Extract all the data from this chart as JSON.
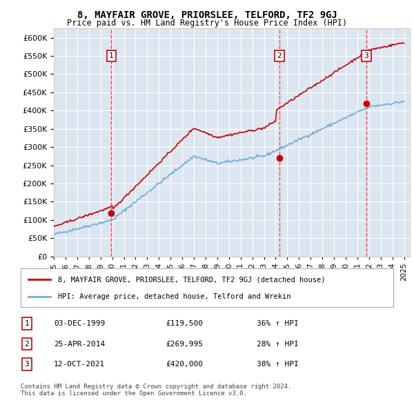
{
  "title": "8, MAYFAIR GROVE, PRIORSLEE, TELFORD, TF2 9GJ",
  "subtitle": "Price paid vs. HM Land Registry's House Price Index (HPI)",
  "ylabel": "",
  "xlim_start": 1995,
  "xlim_end": 2025.5,
  "ylim": [
    0,
    625000
  ],
  "yticks": [
    0,
    50000,
    100000,
    150000,
    200000,
    250000,
    300000,
    350000,
    400000,
    450000,
    500000,
    550000,
    600000
  ],
  "background_color": "#dce6f1",
  "plot_bg": "#dce6f1",
  "grid_color": "#ffffff",
  "sale_points": [
    {
      "year": 1999.92,
      "price": 119500,
      "label": "1"
    },
    {
      "year": 2014.32,
      "price": 269995,
      "label": "2"
    },
    {
      "year": 2021.78,
      "price": 420000,
      "label": "3"
    }
  ],
  "vline_years": [
    1999.92,
    2014.32,
    2021.78
  ],
  "legend_entries": [
    "8, MAYFAIR GROVE, PRIORSLEE, TELFORD, TF2 9GJ (detached house)",
    "HPI: Average price, detached house, Telford and Wrekin"
  ],
  "table_data": [
    [
      "1",
      "03-DEC-1999",
      "£119,500",
      "36% ↑ HPI"
    ],
    [
      "2",
      "25-APR-2014",
      "£269,995",
      "28% ↑ HPI"
    ],
    [
      "3",
      "12-OCT-2021",
      "£420,000",
      "38% ↑ HPI"
    ]
  ],
  "footnote": "Contains HM Land Registry data © Crown copyright and database right 2024.\nThis data is licensed under the Open Government Licence v3.0.",
  "hpi_color": "#6baed6",
  "price_color": "#cc0000",
  "marker_color": "#cc0000",
  "vline_color": "#ff4444"
}
